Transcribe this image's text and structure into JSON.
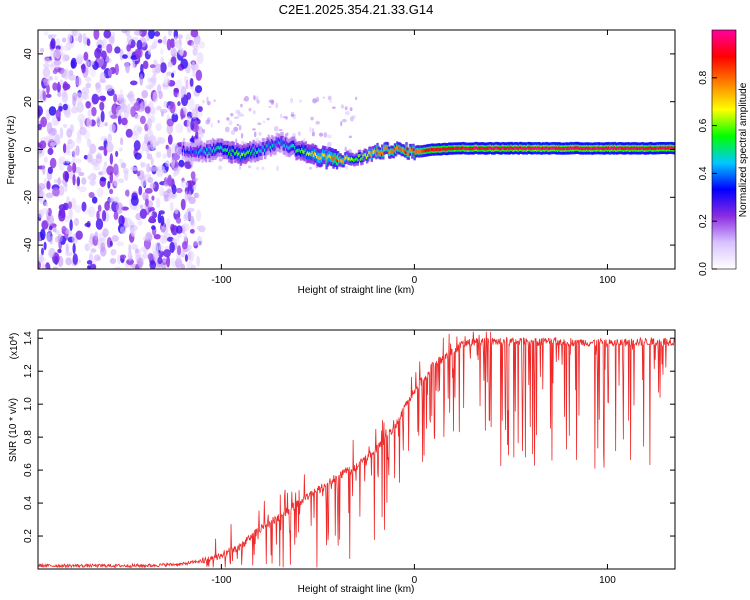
{
  "title": "C2E1.2025.354.21.33.G14",
  "chart_data": [
    {
      "type": "heatmap",
      "panel": "spectrogram",
      "xlabel": "Height of straight line (km)",
      "ylabel": "Frequency (Hz)",
      "xlim": [
        -195,
        135
      ],
      "ylim": [
        -50,
        50
      ],
      "xticks": [
        -100,
        0,
        100
      ],
      "yticks": [
        -40,
        -20,
        0,
        20,
        40
      ],
      "grid": false,
      "legend": "none",
      "colorbar": {
        "label": "Normalized spectral amplitude",
        "range": [
          0.0,
          1.0
        ],
        "ticks": [
          0.0,
          0.2,
          0.4,
          0.6,
          0.8
        ],
        "colormap": [
          "#ffffff",
          "#d9c2ff",
          "#8a2be2",
          "#0000ff",
          "#00c8ff",
          "#00ff00",
          "#ffff00",
          "#ff8000",
          "#ff0000",
          "#ff00a0"
        ]
      },
      "ridge": {
        "x": [
          -120,
          -110,
          -100,
          -90,
          -80,
          -70,
          -60,
          -50,
          -40,
          -30,
          -20,
          -10,
          0,
          10,
          20,
          60,
          100,
          135
        ],
        "freq": [
          0,
          -1,
          0,
          -2,
          0,
          3,
          0,
          -3,
          -4,
          -4,
          -1,
          0,
          -1,
          0,
          0.5,
          0.5,
          0.5,
          0.5
        ],
        "amplitude": [
          0.3,
          0.4,
          0.5,
          0.6,
          0.45,
          0.4,
          0.55,
          0.7,
          0.8,
          0.55,
          0.75,
          0.8,
          0.8,
          0.9,
          0.95,
          0.98,
          0.98,
          0.95
        ]
      },
      "noise_region_x": [
        -195,
        -110
      ]
    },
    {
      "type": "line",
      "panel": "snr",
      "xlabel": "Height of straight line (km)",
      "ylabel": "SNR (10 * v/v)",
      "yscale_label": "(x10",
      "yscale_exponent": "4",
      "xlim": [
        -195,
        135
      ],
      "ylim": [
        0.0,
        1.45
      ],
      "xticks": [
        -100,
        0,
        100
      ],
      "yticks": [
        0.2,
        0.4,
        0.6,
        0.8,
        1.0,
        1.2,
        1.4
      ],
      "grid": false,
      "legend": "none",
      "series": [
        {
          "name": "SNR",
          "color": "#ee2a2a",
          "x": [
            -195,
            -140,
            -120,
            -110,
            -100,
            -90,
            -80,
            -70,
            -60,
            -50,
            -40,
            -30,
            -20,
            -10,
            -5,
            0,
            5,
            10,
            20,
            25,
            30,
            40,
            60,
            80,
            100,
            120,
            135
          ],
          "base": [
            0.02,
            0.02,
            0.03,
            0.05,
            0.08,
            0.14,
            0.24,
            0.32,
            0.4,
            0.48,
            0.56,
            0.62,
            0.72,
            0.86,
            0.98,
            1.08,
            1.16,
            1.24,
            1.32,
            1.37,
            1.38,
            1.38,
            1.38,
            1.38,
            1.37,
            1.38,
            1.38
          ]
        }
      ]
    }
  ]
}
